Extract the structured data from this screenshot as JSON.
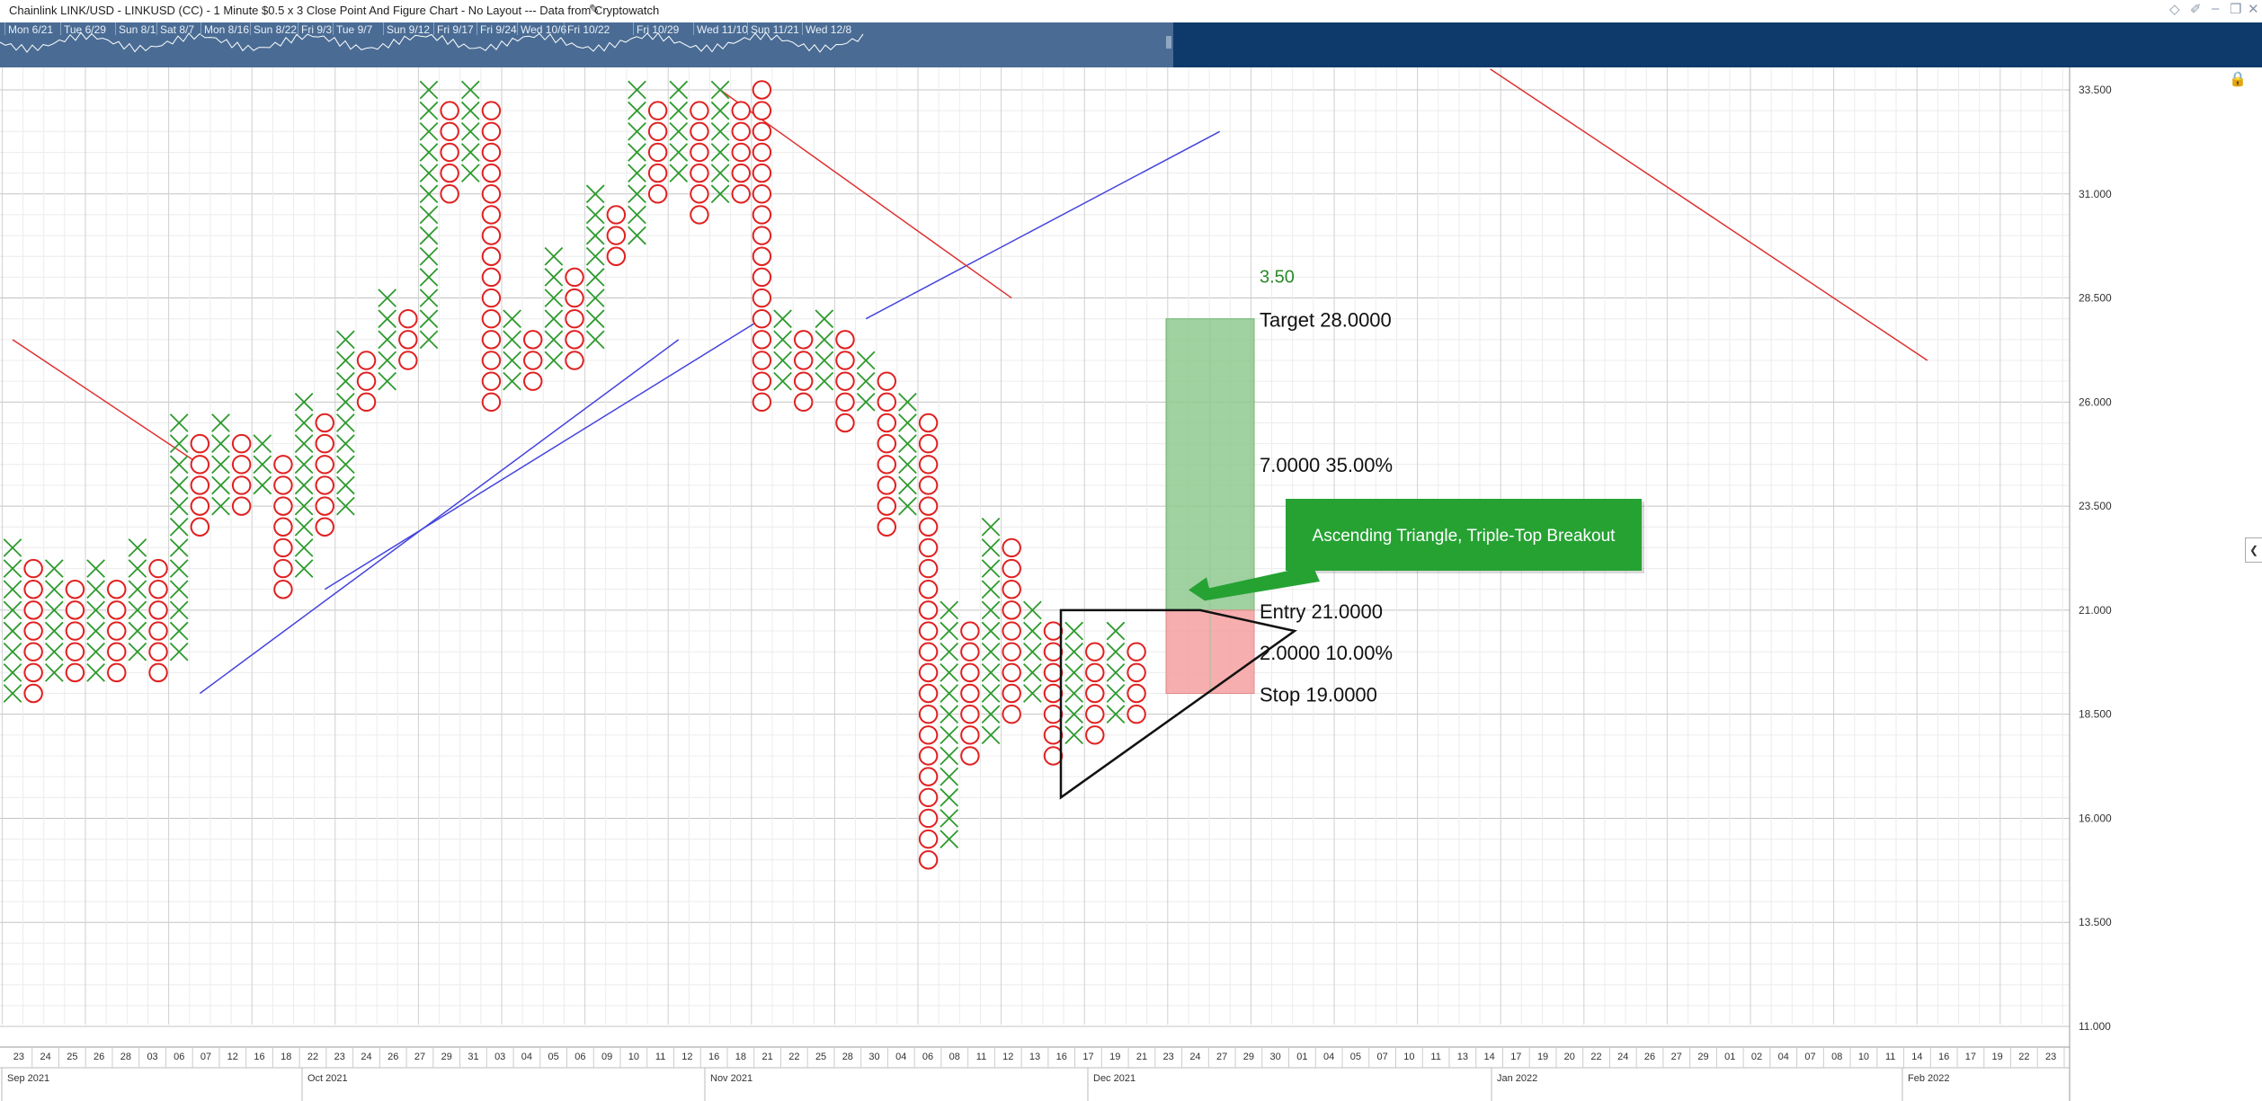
{
  "header": {
    "title": "Chainlink LINK/USD - LINKUSD (CC) - 1 Minute $0.5 x 3 Close Point And Figure Chart - No Layout --- Data from Cryptowatch",
    "icons": [
      "pencil-icon",
      "diamond-icon",
      "pin-icon",
      "minimize-icon",
      "restore-icon",
      "close-icon"
    ]
  },
  "navigator": {
    "dates": [
      "Mon 6/21",
      "Tue 6/29",
      "Sun 8/1",
      "Sat 8/7",
      "Mon 8/16",
      "Sun 8/22",
      "Fri 9/3",
      "Tue 9/7",
      "Sun 9/12",
      "Fri 9/17",
      "Fri 9/24",
      "Wed 10/6",
      "Fri 10/22",
      "Fri 10/29",
      "Wed 11/10",
      "Sun 11/21",
      "Wed 12/8"
    ]
  },
  "colors": {
    "x_mark": "#2e9a2e",
    "o_mark": "#e02020",
    "trend_up": "#4444dd",
    "trend_down": "#e03030",
    "target_zone": "#8fc98f",
    "stop_zone": "#f4a0a0",
    "callout_bg": "#26a233",
    "nav_bg": "#0e3a6b"
  },
  "chart_data": {
    "type": "point-and-figure",
    "box_size": 0.5,
    "reversal": 3,
    "y_axis": {
      "min": 11.0,
      "max": 33.5,
      "ticks": [
        "33.500",
        "31.000",
        "28.500",
        "26.000",
        "23.500",
        "21.000",
        "18.500",
        "16.000",
        "13.500",
        "11.000"
      ]
    },
    "x_axis": {
      "day_labels": [
        "23",
        "24",
        "25",
        "26",
        "28",
        "03",
        "06",
        "07",
        "12",
        "16",
        "18",
        "22",
        "23",
        "24",
        "26",
        "27",
        "29",
        "31",
        "03",
        "04",
        "05",
        "06",
        "09",
        "10",
        "11",
        "12",
        "16",
        "18",
        "21",
        "22",
        "25",
        "28",
        "30",
        "04",
        "06",
        "08",
        "11",
        "12",
        "13",
        "16",
        "17",
        "19",
        "21",
        "23",
        "24",
        "27",
        "29",
        "30",
        "01",
        "04",
        "05",
        "07",
        "10",
        "11",
        "13",
        "14",
        "17",
        "19",
        "20",
        "22",
        "24",
        "26",
        "27",
        "29",
        "01",
        "02",
        "04",
        "07",
        "08",
        "10",
        "11",
        "14",
        "16",
        "17",
        "19",
        "22",
        "23"
      ],
      "month_labels": [
        "Sep 2021",
        "Oct 2021",
        "Nov 2021",
        "Dec 2021",
        "Jan 2022",
        "Feb 2022"
      ]
    },
    "columns": [
      {
        "type": "X",
        "low": 19.0,
        "high": 22.5
      },
      {
        "type": "O",
        "low": 19.0,
        "high": 22.0
      },
      {
        "type": "X",
        "low": 19.5,
        "high": 22.0
      },
      {
        "type": "O",
        "low": 19.5,
        "high": 21.5
      },
      {
        "type": "X",
        "low": 19.5,
        "high": 22.0
      },
      {
        "type": "O",
        "low": 19.5,
        "high": 21.5
      },
      {
        "type": "X",
        "low": 20.0,
        "high": 22.5
      },
      {
        "type": "O",
        "low": 19.5,
        "high": 22.0
      },
      {
        "type": "X",
        "low": 20.0,
        "high": 25.5
      },
      {
        "type": "O",
        "low": 23.0,
        "high": 25.0
      },
      {
        "type": "X",
        "low": 23.5,
        "high": 25.5
      },
      {
        "type": "O",
        "low": 23.5,
        "high": 25.0
      },
      {
        "type": "X",
        "low": 24.0,
        "high": 25.0
      },
      {
        "type": "O",
        "low": 21.5,
        "high": 24.5
      },
      {
        "type": "X",
        "low": 22.0,
        "high": 26.0
      },
      {
        "type": "O",
        "low": 23.0,
        "high": 25.5
      },
      {
        "type": "X",
        "low": 23.5,
        "high": 27.5
      },
      {
        "type": "O",
        "low": 26.0,
        "high": 27.0
      },
      {
        "type": "X",
        "low": 26.5,
        "high": 28.5
      },
      {
        "type": "O",
        "low": 27.0,
        "high": 28.0
      },
      {
        "type": "X",
        "low": 27.5,
        "high": 33.5
      },
      {
        "type": "O",
        "low": 31.0,
        "high": 33.0
      },
      {
        "type": "X",
        "low": 31.5,
        "high": 33.5
      },
      {
        "type": "O",
        "low": 26.0,
        "high": 33.0
      },
      {
        "type": "X",
        "low": 26.5,
        "high": 28.0
      },
      {
        "type": "O",
        "low": 26.5,
        "high": 27.5
      },
      {
        "type": "X",
        "low": 27.0,
        "high": 29.5
      },
      {
        "type": "O",
        "low": 27.0,
        "high": 29.0
      },
      {
        "type": "X",
        "low": 27.5,
        "high": 31.0
      },
      {
        "type": "O",
        "low": 29.5,
        "high": 30.5
      },
      {
        "type": "X",
        "low": 30.0,
        "high": 33.5
      },
      {
        "type": "O",
        "low": 31.0,
        "high": 33.0
      },
      {
        "type": "X",
        "low": 31.5,
        "high": 33.5
      },
      {
        "type": "O",
        "low": 30.5,
        "high": 33.0
      },
      {
        "type": "X",
        "low": 31.0,
        "high": 33.5
      },
      {
        "type": "O",
        "low": 31.0,
        "high": 33.0
      },
      {
        "type": "O",
        "low": 26.0,
        "high": 33.5
      },
      {
        "type": "X",
        "low": 26.5,
        "high": 28.0
      },
      {
        "type": "O",
        "low": 26.0,
        "high": 27.5
      },
      {
        "type": "X",
        "low": 26.5,
        "high": 28.0
      },
      {
        "type": "O",
        "low": 25.5,
        "high": 27.5
      },
      {
        "type": "X",
        "low": 26.0,
        "high": 27.0
      },
      {
        "type": "O",
        "low": 23.0,
        "high": 26.5
      },
      {
        "type": "X",
        "low": 23.5,
        "high": 26.0
      },
      {
        "type": "O",
        "low": 15.0,
        "high": 25.5
      },
      {
        "type": "X",
        "low": 15.5,
        "high": 21.0
      },
      {
        "type": "O",
        "low": 17.5,
        "high": 20.5
      },
      {
        "type": "X",
        "low": 18.0,
        "high": 23.0
      },
      {
        "type": "O",
        "low": 18.5,
        "high": 22.5
      },
      {
        "type": "X",
        "low": 19.0,
        "high": 21.0
      },
      {
        "type": "O",
        "low": 17.5,
        "high": 20.5
      },
      {
        "type": "X",
        "low": 18.0,
        "high": 20.5
      },
      {
        "type": "O",
        "low": 18.0,
        "high": 20.0
      },
      {
        "type": "X",
        "low": 18.5,
        "high": 20.5
      },
      {
        "type": "O",
        "low": 18.5,
        "high": 20.0
      }
    ],
    "trendlines": [
      {
        "color": "blue",
        "points": [
          [
            9,
            19.0
          ],
          [
            32,
            27.5
          ]
        ]
      },
      {
        "color": "blue",
        "points": [
          [
            15,
            21.5
          ],
          [
            36,
            28.0
          ]
        ]
      },
      {
        "color": "blue",
        "points": [
          [
            41,
            28.0
          ],
          [
            58,
            32.5
          ]
        ]
      },
      {
        "color": "red",
        "points": [
          [
            0,
            27.5
          ],
          [
            9,
            24.5
          ]
        ]
      },
      {
        "color": "red",
        "points": [
          [
            34,
            33.5
          ],
          [
            48,
            28.5
          ]
        ]
      },
      {
        "color": "red",
        "points": [
          [
            71,
            34.0
          ],
          [
            92,
            27.0
          ]
        ]
      }
    ],
    "trade_setup": {
      "entry": 21.0,
      "target": 28.0,
      "stop": 19.0,
      "reward": 7.0,
      "reward_pct": 35.0,
      "risk": 2.0,
      "risk_pct": 10.0,
      "ratio": 3.5,
      "labels": {
        "ratio": "3.50",
        "target": "Target   28.0000",
        "reward": "7.0000   35.00%",
        "entry": "Entry   21.0000",
        "risk": "2.0000   10.00%",
        "stop": "Stop   19.0000"
      }
    },
    "pattern": {
      "label": "Ascending Triangle, Triple-Top Breakout",
      "triangle": [
        [
          21.0
        ],
        [
          17.0
        ],
        [
          20.0
        ]
      ]
    }
  }
}
